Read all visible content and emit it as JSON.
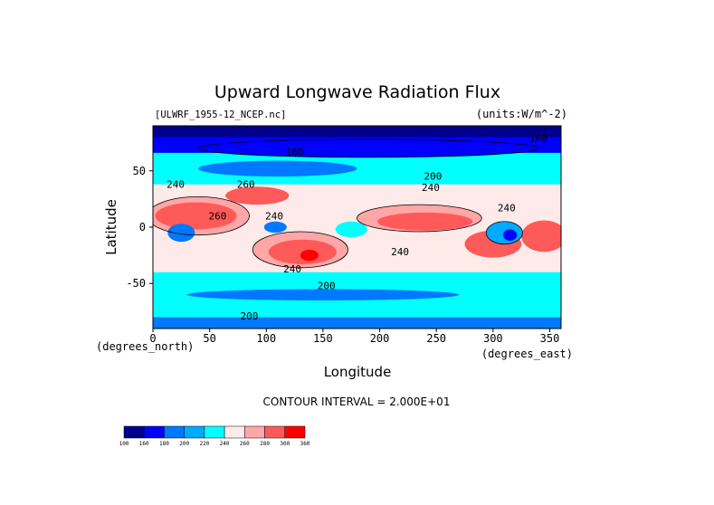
{
  "chart_data": {
    "type": "heatmap",
    "title": "Upward Longwave Radiation Flux",
    "source_label": "[ULWRF_1955-12_NCEP.nc]",
    "units_label": "(units:W/m^-2)",
    "xlabel": "Longitude",
    "ylabel": "Latitude",
    "x_unit_note": "(degrees_east)",
    "y_unit_note": "(degrees_north)",
    "xlim": [
      0,
      360
    ],
    "ylim": [
      -90,
      90
    ],
    "x_ticks": [
      0,
      50,
      100,
      150,
      200,
      250,
      300,
      350
    ],
    "y_ticks": [
      50,
      0,
      -50
    ],
    "contour_interval_label": "CONTOUR INTERVAL = 2.000E+01",
    "contour_labels": [
      {
        "text": "160",
        "lon": 125,
        "lat": 64
      },
      {
        "text": "160",
        "lon": 340,
        "lat": 76
      },
      {
        "text": "200",
        "lon": 247,
        "lat": 42
      },
      {
        "text": "200",
        "lon": 153,
        "lat": -55
      },
      {
        "text": "200",
        "lon": 85,
        "lat": -82
      },
      {
        "text": "240",
        "lon": 20,
        "lat": 35
      },
      {
        "text": "240",
        "lon": 245,
        "lat": 32
      },
      {
        "text": "240",
        "lon": 312,
        "lat": 14
      },
      {
        "text": "240",
        "lon": 123,
        "lat": -40
      },
      {
        "text": "240",
        "lon": 218,
        "lat": -25
      },
      {
        "text": "260",
        "lon": 82,
        "lat": 35
      },
      {
        "text": "260",
        "lon": 57,
        "lat": 7
      },
      {
        "text": "240",
        "lon": 107,
        "lat": 7
      }
    ],
    "legend": {
      "levels": [
        100,
        160,
        180,
        200,
        220,
        240,
        260,
        280,
        300,
        360
      ],
      "colors": [
        "#00008b",
        "#0000ff",
        "#0078ff",
        "#00aaff",
        "#00ffff",
        "#ffeaea",
        "#ffa6a6",
        "#ff5a5a",
        "#ff0000"
      ]
    }
  }
}
